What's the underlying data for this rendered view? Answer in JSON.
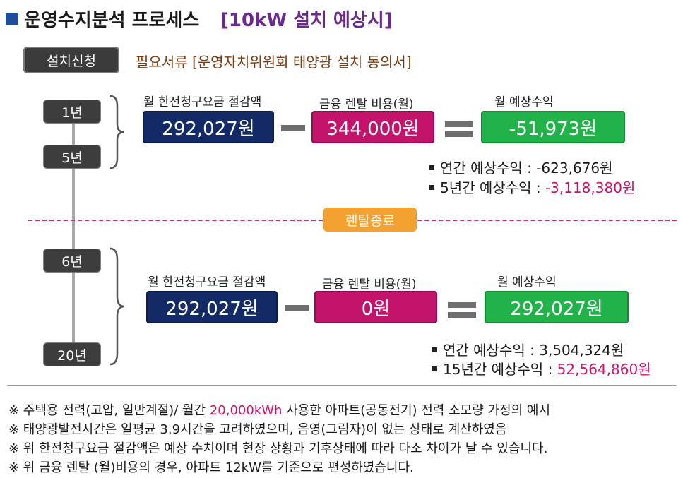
{
  "title": {
    "main": "운영수지분석 프로세스",
    "sub": "[10kW 설치 예상시]"
  },
  "install": {
    "badge": "설치신청",
    "docs": "필요서류 [운영자치위원회 태양광 설치 동의서]"
  },
  "period1": {
    "start_label": "1년",
    "end_label": "5년",
    "savings_label": "월 한전청구요금 절감액",
    "savings_value": "292,027원",
    "rental_label": "금융 렌탈 비용(월)",
    "rental_value": "344,000원",
    "income_label": "월 예상수익",
    "income_value": "-51,973원",
    "annual_label": "연간 예상수익 : ",
    "annual_value": "-623,676원",
    "total_label": "5년간 예상수익 : ",
    "total_value": "-3,118,380원"
  },
  "rental_end": "렌탈종료",
  "period2": {
    "start_label": "6년",
    "end_label": "20년",
    "savings_label": "월 한전청구요금 절감액",
    "savings_value": "292,027원",
    "rental_label": "금융 렌탈 비용(월)",
    "rental_value": "0원",
    "income_label": "월 예상수익",
    "income_value": "292,027원",
    "annual_label": "연간 예상수익 : ",
    "annual_value": "3,504,324원",
    "total_label": "15년간 예상수익 : ",
    "total_value": "52,564,860원"
  },
  "footnotes": {
    "line1_pre": "※ 주택용 전력(고압, 일반계절)/ 월간 ",
    "line1_hl": "20,000kWh",
    "line1_post": " 사용한 아파트(공동전기) 전력 소모량 가정의 예시",
    "line2": "※ 태양광발전시간은 일평균 3.9시간을 고려하였으며, 음영(그림자)이 없는 상태로 계산하였음",
    "line3": "※ 위 한전청구요금 절감액은 예상 수치이며 현장 상황과 기후상태에 따라 다소 차이가 날 수 있습니다.",
    "line4": "※ 위 금융 렌탈 (월)비용의 경우, 아파트 12kW를 기준으로 편성하였습니다."
  },
  "colors": {
    "navy": "#142a66",
    "magenta": "#c4136b",
    "green": "#21b24a",
    "orange": "#f3a130",
    "title_accent": "#6a2a8c"
  }
}
